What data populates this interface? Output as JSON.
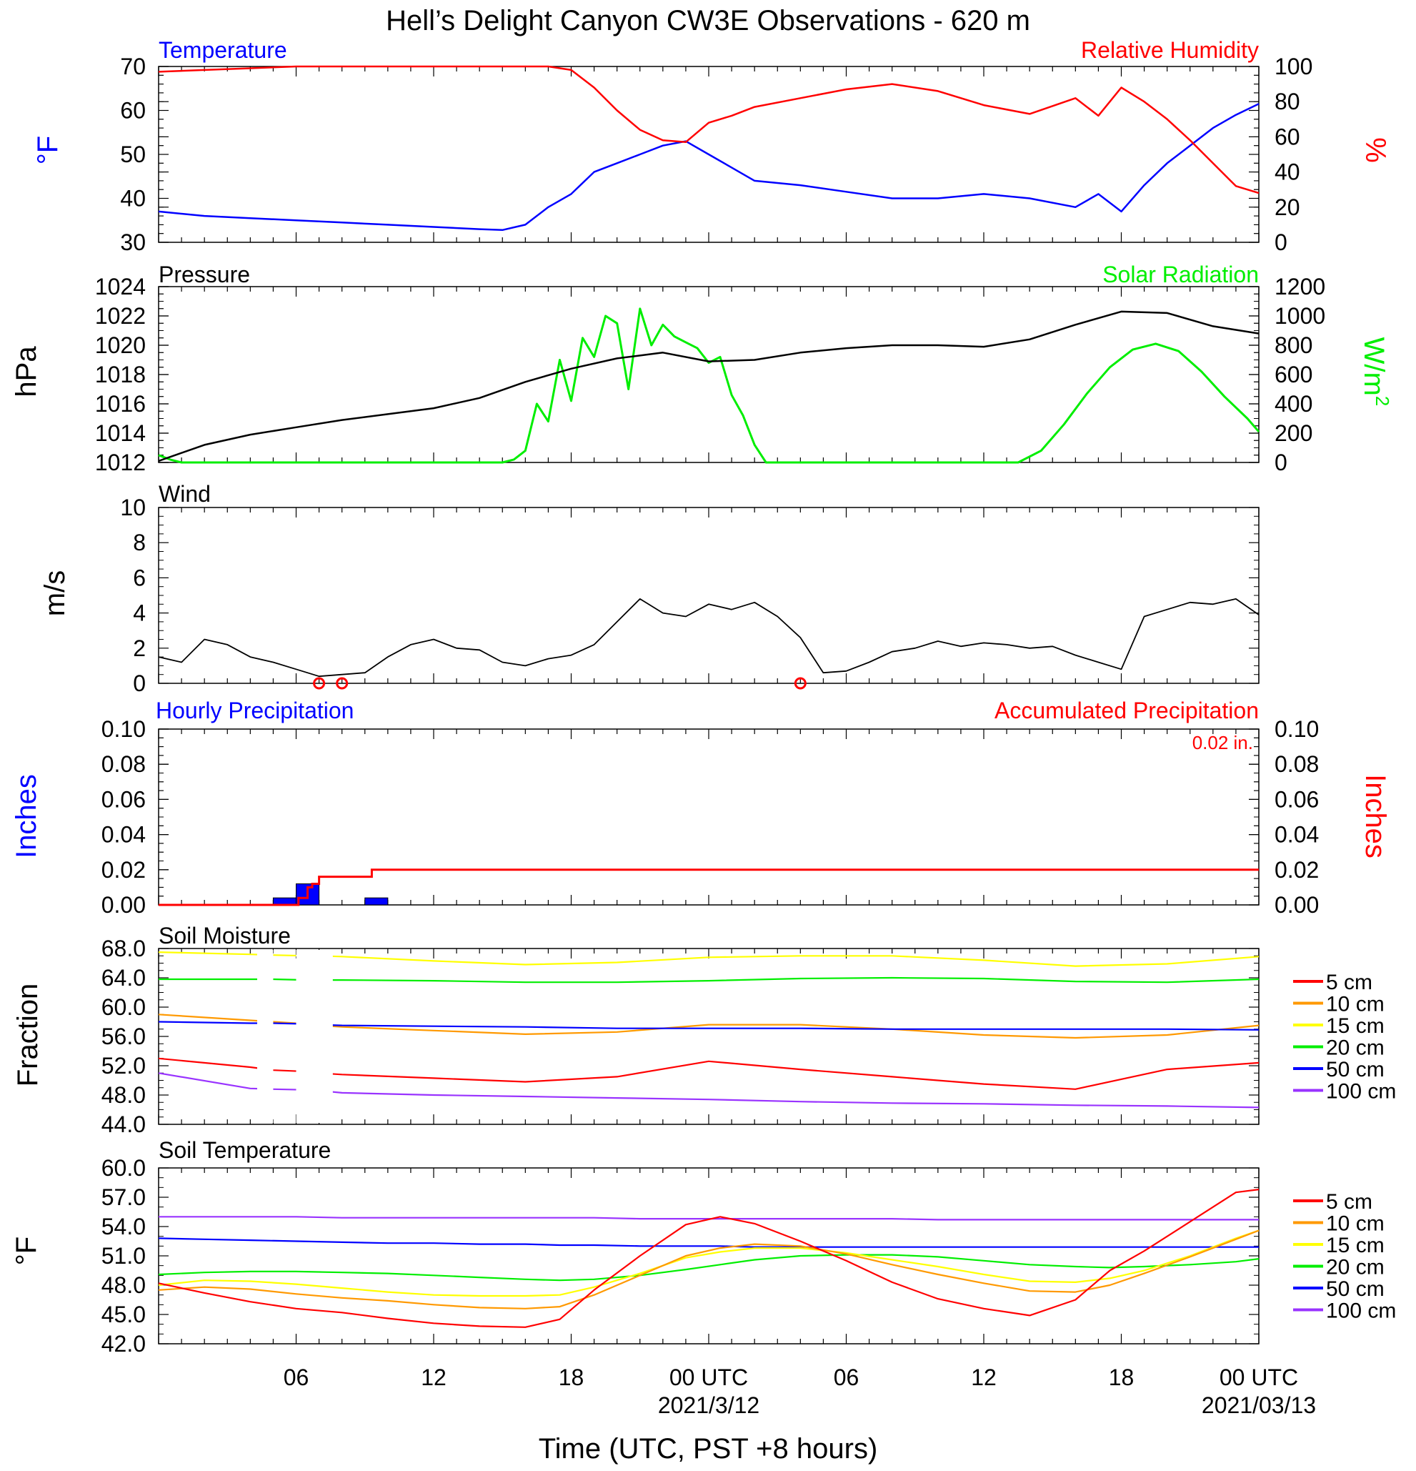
{
  "figure": {
    "title": "Hell’s Delight Canyon CW3E Observations - 620 m",
    "xlabel": "Time (UTC, PST +8 hours)",
    "x_ticks": [
      "06",
      "12",
      "18",
      "00 UTC",
      "06",
      "12",
      "18",
      "00 UTC"
    ],
    "x_dates": [
      "2021/3/12",
      "2021/03/13"
    ]
  },
  "colors": {
    "temperature": "#0000ff",
    "humidity": "#ff0000",
    "pressure": "#000000",
    "solar": "#00ee00",
    "wind": "#000000",
    "barb": "#ff0000",
    "hourly": "#0000ff",
    "accumulated": "#ff0000",
    "d5": "#ff0000",
    "d10": "#ff9900",
    "d15": "#ffff00",
    "d20": "#00ee00",
    "d50": "#0000ff",
    "d100": "#9933ff"
  },
  "chart_data": [
    {
      "type": "line",
      "title": "Temperature / Relative Humidity",
      "left_title": "Temperature",
      "right_title": "Relative Humidity",
      "ylabel_left": "°F",
      "ylabel_right": "%",
      "ylim_left": [
        30,
        70
      ],
      "ylim_right": [
        0,
        100
      ],
      "y_ticks_left": [
        "30",
        "40",
        "50",
        "60",
        "70"
      ],
      "y_ticks_right": [
        "0",
        "20",
        "40",
        "60",
        "80",
        "100"
      ],
      "x_hours": [
        0,
        2,
        4,
        6,
        8,
        10,
        12,
        14,
        15,
        16,
        17,
        18,
        19,
        20,
        21,
        22,
        23,
        24,
        25,
        26,
        28,
        30,
        32,
        34,
        36,
        38,
        40,
        41,
        42,
        43,
        44,
        45,
        46,
        47,
        48
      ],
      "series": [
        {
          "name": "Temperature",
          "axis": "left",
          "color_key": "temperature",
          "values": [
            37,
            36,
            35.5,
            35,
            34.5,
            34,
            33.5,
            33,
            32.8,
            34,
            38,
            41,
            46,
            48,
            50,
            52,
            53,
            50,
            47,
            44,
            43,
            41.5,
            40,
            40,
            41,
            40,
            38,
            41,
            37,
            43,
            48,
            52,
            56,
            59,
            61.5
          ]
        },
        {
          "name": "Relative Humidity",
          "axis": "right",
          "color_key": "humidity",
          "values": [
            97,
            98,
            99,
            100,
            100,
            100,
            100,
            100,
            100,
            100,
            100,
            98,
            88,
            75,
            64,
            58,
            57,
            68,
            72,
            77,
            82,
            87,
            90,
            86,
            78,
            73,
            82,
            72,
            88,
            80,
            70,
            58,
            45,
            32,
            28
          ]
        }
      ]
    },
    {
      "type": "line",
      "title": "Pressure / Solar Radiation",
      "left_title": "Pressure",
      "right_title": "Solar Radiation",
      "ylabel_left": "hPa",
      "ylabel_right": "W/m",
      "ylabel_right_sup": "2",
      "ylim_left": [
        1012,
        1024
      ],
      "ylim_right": [
        0,
        1200
      ],
      "y_ticks_left": [
        "1012",
        "1014",
        "1016",
        "1018",
        "1020",
        "1022",
        "1024"
      ],
      "y_ticks_right": [
        "0",
        "200",
        "400",
        "600",
        "800",
        "1000",
        "1200"
      ],
      "x_hours": [
        0,
        2,
        4,
        6,
        8,
        10,
        12,
        14,
        16,
        18,
        20,
        21,
        22,
        24,
        26,
        28,
        30,
        32,
        34,
        36,
        38,
        40,
        42,
        44,
        46,
        48
      ],
      "series": [
        {
          "name": "Pressure",
          "axis": "left",
          "color_key": "pressure",
          "values": [
            1012.1,
            1013.2,
            1013.9,
            1014.4,
            1014.9,
            1015.3,
            1015.7,
            1016.4,
            1017.5,
            1018.4,
            1019.1,
            1019.3,
            1019.5,
            1018.9,
            1019.0,
            1019.5,
            1019.8,
            1020.0,
            1020.0,
            1019.9,
            1020.4,
            1021.4,
            1022.3,
            1022.2,
            1021.3,
            1020.8
          ]
        },
        {
          "name": "Solar Radiation",
          "axis": "right",
          "color_key": "solar",
          "x_hours": [
            0,
            0.5,
            1,
            14,
            15,
            15.5,
            16,
            16.5,
            17,
            17.5,
            18,
            18.5,
            19,
            19.5,
            20,
            20.5,
            21,
            21.5,
            22,
            22.5,
            23,
            23.5,
            24,
            24.5,
            25,
            25.5,
            26,
            26.5,
            37.5,
            38.5,
            39.5,
            40.5,
            41.5,
            42.5,
            43.5,
            44.5,
            45.5,
            46.5,
            47.5,
            48
          ],
          "values": [
            50,
            20,
            0,
            0,
            0,
            20,
            80,
            400,
            280,
            700,
            420,
            850,
            720,
            1000,
            950,
            500,
            1050,
            800,
            940,
            860,
            820,
            780,
            680,
            720,
            460,
            320,
            120,
            0,
            0,
            80,
            260,
            470,
            650,
            770,
            810,
            760,
            620,
            450,
            300,
            210
          ]
        }
      ]
    },
    {
      "type": "line",
      "title": "Wind",
      "ylabel": "m/s",
      "ylim": [
        0,
        10
      ],
      "y_ticks": [
        "0",
        "2",
        "4",
        "6",
        "8",
        "10"
      ],
      "x_hours": [
        0,
        1,
        2,
        3,
        4,
        5,
        6,
        7,
        8,
        9,
        10,
        11,
        12,
        13,
        14,
        15,
        16,
        17,
        18,
        19,
        20,
        21,
        22,
        23,
        24,
        25,
        26,
        27,
        28,
        29,
        30,
        31,
        32,
        33,
        34,
        35,
        36,
        37,
        38,
        39,
        40,
        41,
        42,
        43,
        44,
        45,
        46,
        47,
        48
      ],
      "series": [
        {
          "name": "Wind",
          "color_key": "wind",
          "values": [
            1.5,
            1.2,
            2.5,
            2.2,
            1.5,
            1.2,
            0.8,
            0.4,
            0.5,
            0.6,
            1.5,
            2.2,
            2.5,
            2.0,
            1.9,
            1.2,
            1.0,
            1.4,
            1.6,
            2.2,
            3.5,
            4.8,
            4.0,
            3.8,
            4.5,
            4.2,
            4.6,
            3.8,
            2.6,
            0.6,
            0.7,
            1.2,
            1.8,
            2.0,
            2.4,
            2.1,
            2.3,
            2.2,
            2.0,
            2.1,
            1.6,
            1.2,
            0.8,
            3.8,
            4.2,
            4.6,
            4.5,
            4.8,
            3.9
          ]
        }
      ],
      "calm_markers_hours": [
        7,
        8,
        28
      ]
    },
    {
      "type": "bar",
      "title": "Hourly / Accumulated Precipitation",
      "left_title": "Hourly Precipitation",
      "right_title": "Accumulated Precipitation",
      "total_label": "0.02 in.",
      "ylabel_left": "Inches",
      "ylabel_right": "Inches",
      "ylim": [
        0,
        0.1
      ],
      "y_ticks": [
        "0.00",
        "0.02",
        "0.04",
        "0.06",
        "0.08",
        "0.10"
      ],
      "hourly_bars": [
        {
          "hour_start": 5,
          "value": 0.004
        },
        {
          "hour_start": 6,
          "value": 0.012
        },
        {
          "hour_start": 9,
          "value": 0.004
        }
      ],
      "accumulated": {
        "x_hours": [
          0,
          5.9,
          6.1,
          6.5,
          6.7,
          7,
          9.3,
          48
        ],
        "values": [
          0,
          0,
          0.004,
          0.01,
          0.012,
          0.016,
          0.02,
          0.02
        ]
      }
    },
    {
      "type": "line",
      "title": "Soil Moisture",
      "ylabel": "Fraction",
      "ylim": [
        44,
        68
      ],
      "y_ticks": [
        "44.0",
        "48.0",
        "52.0",
        "56.0",
        "60.0",
        "64.0",
        "68.0"
      ],
      "legend": [
        "5 cm",
        "10 cm",
        "15 cm",
        "20 cm",
        "50 cm",
        "100 cm"
      ],
      "x_hours": [
        0,
        4,
        5,
        6.5,
        7,
        8,
        12,
        16,
        20,
        24,
        28,
        32,
        36,
        40,
        44,
        48
      ],
      "gaps_hours": [
        [
          4.3,
          5.0
        ],
        [
          6.0,
          7.6
        ]
      ],
      "series": [
        {
          "name": "5 cm",
          "color_key": "d5",
          "values": [
            53,
            51.8,
            51.4,
            51.2,
            51,
            50.8,
            50.3,
            49.8,
            50.5,
            52.6,
            51.5,
            50.5,
            49.5,
            48.8,
            51.5,
            52.4
          ]
        },
        {
          "name": "10 cm",
          "color_key": "d10",
          "values": [
            59,
            58.2,
            58,
            57.7,
            57.5,
            57.3,
            56.8,
            56.3,
            56.6,
            57.6,
            57.6,
            57,
            56.2,
            55.8,
            56.2,
            57.5
          ]
        },
        {
          "name": "15 cm",
          "color_key": "d15",
          "values": [
            67.5,
            67.2,
            67.1,
            67,
            67,
            66.9,
            66.3,
            65.8,
            66.1,
            66.8,
            67,
            67,
            66.4,
            65.6,
            65.9,
            66.9
          ]
        },
        {
          "name": "20 cm",
          "color_key": "d20",
          "values": [
            63.8,
            63.8,
            63.8,
            63.7,
            63.7,
            63.7,
            63.6,
            63.4,
            63.4,
            63.6,
            63.9,
            64,
            63.9,
            63.5,
            63.4,
            63.8
          ]
        },
        {
          "name": "50 cm",
          "color_key": "d50",
          "values": [
            58,
            57.8,
            57.8,
            57.7,
            57.6,
            57.5,
            57.4,
            57.3,
            57.1,
            57.1,
            57.1,
            57.0,
            57.0,
            57.0,
            57.0,
            56.9
          ]
        },
        {
          "name": "100 cm",
          "color_key": "d100",
          "values": [
            51,
            48.9,
            48.8,
            48.7,
            48.6,
            48.3,
            48.0,
            47.8,
            47.6,
            47.4,
            47.1,
            46.9,
            46.8,
            46.6,
            46.5,
            46.3
          ]
        }
      ]
    },
    {
      "type": "line",
      "title": "Soil Temperature",
      "ylabel": "°F",
      "ylim": [
        42,
        60
      ],
      "y_ticks": [
        "42.0",
        "45.0",
        "48.0",
        "51.0",
        "54.0",
        "57.0",
        "60.0"
      ],
      "legend": [
        "5 cm",
        "10 cm",
        "15 cm",
        "20 cm",
        "50 cm",
        "100 cm"
      ],
      "x_hours": [
        0,
        2,
        4,
        6,
        8,
        10,
        12,
        14,
        16,
        17.5,
        19,
        21,
        23,
        24.5,
        26,
        28,
        30,
        32,
        34,
        36,
        38,
        40,
        41.5,
        43,
        45,
        47,
        48
      ],
      "series": [
        {
          "name": "5 cm",
          "color_key": "d5",
          "values": [
            48.2,
            47.2,
            46.3,
            45.6,
            45.2,
            44.6,
            44.1,
            43.8,
            43.7,
            44.5,
            47.5,
            51,
            54.2,
            55.0,
            54.3,
            52.5,
            50.5,
            48.3,
            46.6,
            45.6,
            44.9,
            46.5,
            49.5,
            51.5,
            54.5,
            57.5,
            57.8
          ]
        },
        {
          "name": "10 cm",
          "color_key": "d10",
          "values": [
            47.5,
            47.8,
            47.6,
            47.1,
            46.7,
            46.4,
            46,
            45.7,
            45.6,
            45.8,
            47,
            49,
            51,
            51.8,
            52.2,
            52,
            51.2,
            50.1,
            49.1,
            48.2,
            47.4,
            47.3,
            48,
            49.2,
            50.9,
            52.7,
            53.6
          ]
        },
        {
          "name": "15 cm",
          "color_key": "d15",
          "values": [
            48,
            48.5,
            48.4,
            48.1,
            47.7,
            47.3,
            47,
            46.9,
            46.9,
            47,
            47.8,
            49.2,
            50.8,
            51.4,
            51.8,
            51.8,
            51.3,
            50.6,
            49.9,
            49.1,
            48.4,
            48.3,
            48.7,
            49.5,
            51,
            52.8,
            53.6
          ]
        },
        {
          "name": "20 cm",
          "color_key": "d20",
          "values": [
            49.1,
            49.3,
            49.4,
            49.4,
            49.3,
            49.2,
            49,
            48.8,
            48.6,
            48.5,
            48.6,
            49,
            49.6,
            50.1,
            50.6,
            51,
            51.1,
            51.1,
            50.9,
            50.5,
            50.1,
            49.9,
            49.8,
            49.9,
            50.1,
            50.4,
            50.7
          ]
        },
        {
          "name": "50 cm",
          "color_key": "d50",
          "values": [
            52.8,
            52.7,
            52.6,
            52.5,
            52.4,
            52.3,
            52.3,
            52.2,
            52.2,
            52.1,
            52.1,
            52.0,
            52.0,
            52.0,
            51.9,
            51.9,
            51.9,
            51.9,
            51.9,
            51.9,
            51.9,
            51.9,
            51.9,
            51.9,
            51.9,
            51.9,
            51.9
          ]
        },
        {
          "name": "100 cm",
          "color_key": "d100",
          "values": [
            55,
            55,
            55,
            55,
            54.9,
            54.9,
            54.9,
            54.9,
            54.9,
            54.9,
            54.9,
            54.8,
            54.8,
            54.8,
            54.8,
            54.8,
            54.8,
            54.8,
            54.7,
            54.7,
            54.7,
            54.7,
            54.7,
            54.7,
            54.7,
            54.7,
            54.7
          ]
        }
      ]
    }
  ]
}
